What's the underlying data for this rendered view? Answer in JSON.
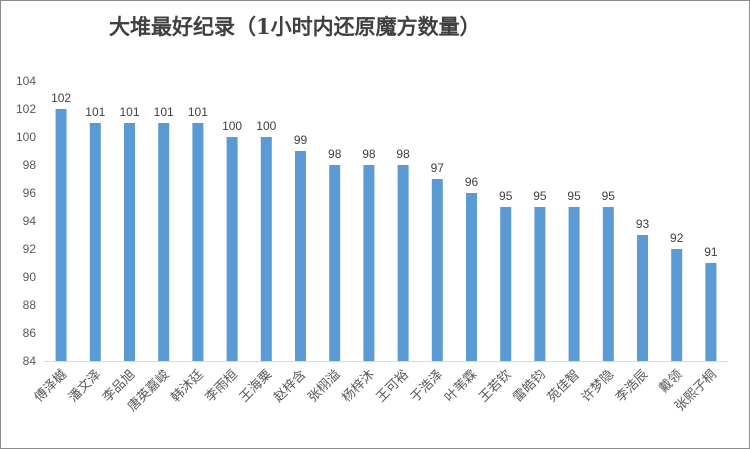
{
  "chart_data": {
    "type": "bar",
    "title": "大堆最好纪录（1小时内还原魔方数量）",
    "xlabel": "",
    "ylabel": "",
    "ylim": [
      84,
      104
    ],
    "yticks": [
      84,
      86,
      88,
      90,
      92,
      94,
      96,
      98,
      100,
      102,
      104
    ],
    "grid": false,
    "legend": "none",
    "bar_color": "#5b9bd5",
    "categories": [
      "傅泽樾",
      "潘文泽",
      "李品旭",
      "唐英嘉峻",
      "韩沐廷",
      "李雨桓",
      "王海粟",
      "赵梓含",
      "张栩溢",
      "杨梓沐",
      "王可裕",
      "于浩泽",
      "叶苇霖",
      "王若钦",
      "雷皓钧",
      "苑佳智",
      "许梦隐",
      "李浩辰",
      "戴领",
      "张熙子桐"
    ],
    "values": [
      102,
      101,
      101,
      101,
      101,
      100,
      100,
      99,
      98,
      98,
      98,
      97,
      96,
      95,
      95,
      95,
      95,
      93,
      92,
      91
    ]
  }
}
